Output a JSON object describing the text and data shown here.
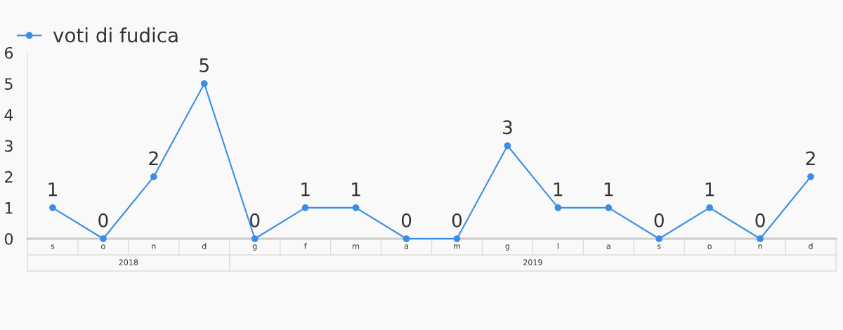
{
  "chart_data": {
    "type": "line",
    "categories": [
      "s",
      "o",
      "n",
      "d",
      "g",
      "f",
      "m",
      "a",
      "m",
      "g",
      "l",
      "a",
      "s",
      "o",
      "n",
      "d"
    ],
    "series": [
      {
        "name": "voti di fudica",
        "color": "#3a8ee6",
        "values": [
          1,
          0,
          2,
          5,
          0,
          1,
          1,
          0,
          0,
          3,
          1,
          1,
          0,
          1,
          0,
          2
        ]
      }
    ],
    "ylim": [
      0,
      6
    ],
    "yticks": [
      0,
      1,
      2,
      3,
      4,
      5,
      6
    ],
    "annotations": [
      "2018",
      "2019"
    ],
    "grid": false,
    "legend": "top left",
    "marker": "circle",
    "line_style": "solid",
    "data_labels": true
  }
}
